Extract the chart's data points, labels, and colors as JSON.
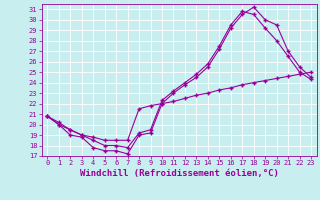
{
  "xlabel": "Windchill (Refroidissement éolien,°C)",
  "bg_color": "#c8eef0",
  "line_color": "#990099",
  "grid_color": "#ffffff",
  "xlim": [
    -0.5,
    23.5
  ],
  "ylim": [
    17,
    31.5
  ],
  "xticks": [
    0,
    1,
    2,
    3,
    4,
    5,
    6,
    7,
    8,
    9,
    10,
    11,
    12,
    13,
    14,
    15,
    16,
    17,
    18,
    19,
    20,
    21,
    22,
    23
  ],
  "yticks": [
    17,
    18,
    19,
    20,
    21,
    22,
    23,
    24,
    25,
    26,
    27,
    28,
    29,
    30,
    31
  ],
  "line1_x": [
    0,
    1,
    2,
    3,
    4,
    5,
    6,
    7,
    8,
    9,
    10,
    11,
    12,
    13,
    14,
    15,
    16,
    17,
    18,
    19,
    20,
    21,
    22,
    23
  ],
  "line1_y": [
    20.8,
    20.0,
    19.0,
    18.8,
    17.8,
    17.5,
    17.5,
    17.2,
    19.0,
    19.2,
    22.0,
    23.0,
    23.8,
    24.5,
    25.5,
    27.2,
    29.2,
    30.5,
    31.2,
    30.0,
    29.5,
    27.0,
    25.5,
    24.5
  ],
  "line2_x": [
    0,
    1,
    2,
    3,
    4,
    5,
    6,
    7,
    8,
    9,
    10,
    11,
    12,
    13,
    14,
    15,
    16,
    17,
    18,
    19,
    20,
    21,
    22,
    23
  ],
  "line2_y": [
    20.8,
    20.0,
    19.5,
    19.0,
    18.5,
    18.0,
    18.0,
    17.8,
    19.2,
    19.5,
    22.3,
    23.2,
    24.0,
    24.8,
    25.8,
    27.5,
    29.5,
    30.8,
    30.5,
    29.2,
    28.0,
    26.5,
    25.0,
    24.3
  ],
  "line3_x": [
    0,
    1,
    2,
    3,
    4,
    5,
    6,
    7,
    8,
    9,
    10,
    11,
    12,
    13,
    14,
    15,
    16,
    17,
    18,
    19,
    20,
    21,
    22,
    23
  ],
  "line3_y": [
    20.8,
    20.2,
    19.5,
    19.0,
    18.8,
    18.5,
    18.5,
    18.5,
    21.5,
    21.8,
    22.0,
    22.2,
    22.5,
    22.8,
    23.0,
    23.3,
    23.5,
    23.8,
    24.0,
    24.2,
    24.4,
    24.6,
    24.8,
    25.0
  ],
  "marker": "+",
  "markersize": 3,
  "linewidth": 0.8,
  "tick_fontsize": 5.0,
  "xlabel_fontsize": 6.5
}
